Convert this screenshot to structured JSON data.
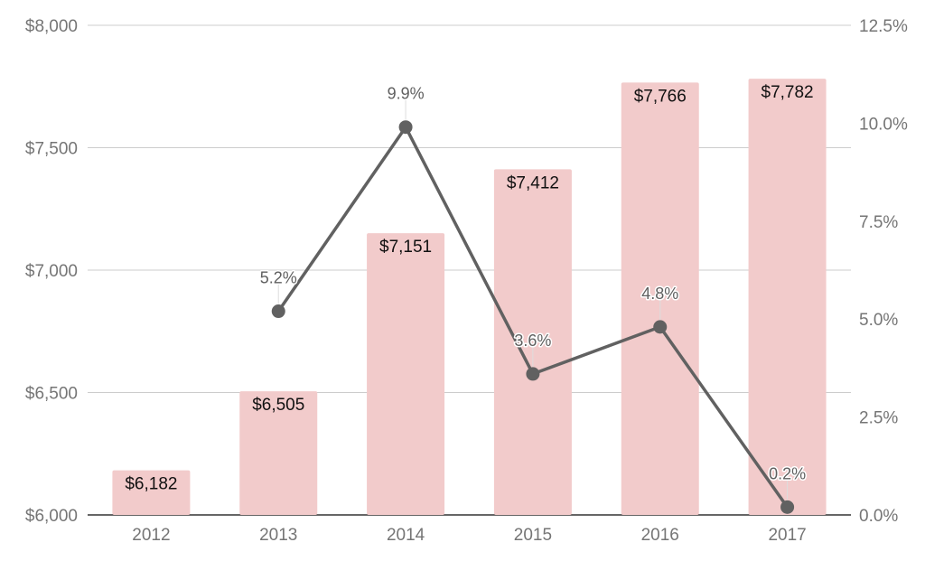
{
  "chart_data": {
    "type": "bar",
    "categories": [
      "2012",
      "2013",
      "2014",
      "2015",
      "2016",
      "2017"
    ],
    "series": [
      {
        "type": "bar",
        "axis": "left",
        "color": "#f2cbcb",
        "values": [
          6182,
          6505,
          7151,
          7412,
          7766,
          7782
        ],
        "labels": [
          "$6,182",
          "$6,505",
          "$7,151",
          "$7,412",
          "$7,766",
          "$7,782"
        ]
      },
      {
        "type": "line",
        "axis": "right",
        "color": "#616161",
        "values": [
          null,
          5.2,
          9.9,
          3.6,
          4.8,
          0.2
        ],
        "labels": [
          "",
          "5.2%",
          "9.9%",
          "3.6%",
          "4.8%",
          "0.2%"
        ]
      }
    ],
    "y_left": {
      "ylim": [
        6000,
        8000
      ],
      "ticks": [
        6000,
        6500,
        7000,
        7500,
        8000
      ],
      "tick_labels": [
        "$6,000",
        "$6,500",
        "$7,000",
        "$7,500",
        "$8,000"
      ]
    },
    "y_right": {
      "ylim": [
        0,
        12.5
      ],
      "ticks": [
        0,
        2.5,
        5,
        7.5,
        10,
        12.5
      ],
      "tick_labels": [
        "0.0%",
        "2.5%",
        "5.0%",
        "7.5%",
        "10.0%",
        "12.5%"
      ]
    },
    "title": "",
    "xlabel": "",
    "ylabel": "",
    "grid": true,
    "legend": "none"
  }
}
